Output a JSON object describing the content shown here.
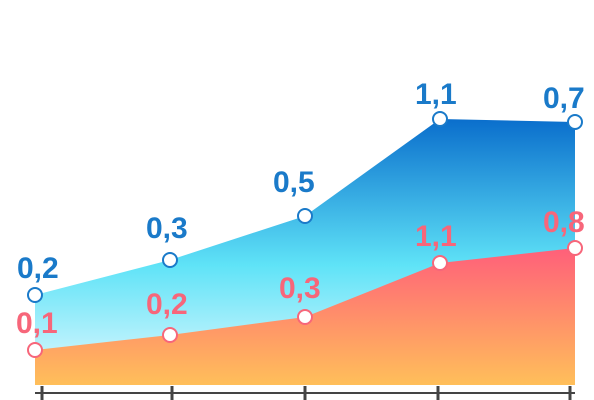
{
  "chart_data": {
    "type": "area",
    "categories": [
      "",
      "",
      "",
      "",
      ""
    ],
    "x": [
      1,
      2,
      3,
      4,
      5
    ],
    "series": [
      {
        "values": [
          0.2,
          0.3,
          0.5,
          1.1,
          0.7
        ],
        "labels": [
          "0,2",
          "0,3",
          "0,5",
          "1,1",
          "0,7"
        ],
        "color": "#1a7ac9",
        "gradient": [
          "#0a6ecc",
          "#5fe3f7",
          "#e6f9ff"
        ]
      },
      {
        "values": [
          0.1,
          0.2,
          0.3,
          1.1,
          0.8
        ],
        "labels": [
          "0,1",
          "0,2",
          "0,3",
          "1,1",
          "0,8"
        ],
        "color": "#f7667a",
        "gradient": [
          "#ff5f7a",
          "#ffbf5a"
        ]
      }
    ],
    "stacked": false,
    "grid": false,
    "legend": "none",
    "axis_color": "#444444"
  }
}
